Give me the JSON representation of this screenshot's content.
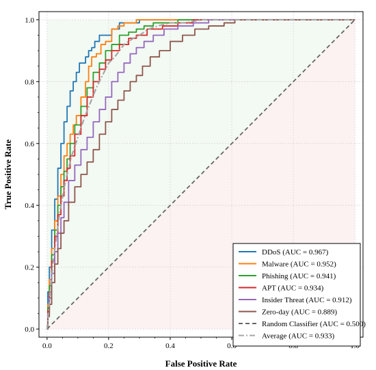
{
  "chart_data": {
    "type": "line",
    "title": "",
    "xlabel": "False Positive Rate",
    "ylabel": "True Positive Rate",
    "xlim": [
      0,
      1
    ],
    "ylim": [
      0,
      1
    ],
    "xticks": [
      "0.0",
      "0.2",
      "0.4",
      "0.6",
      "0.8",
      "1.0"
    ],
    "yticks": [
      "0.0",
      "0.2",
      "0.4",
      "0.6",
      "0.8",
      "1.0"
    ],
    "grid": true,
    "legend_position": "bottom-right",
    "shaded_regions": [
      {
        "region": "above-diagonal",
        "color": "#2ca02c"
      },
      {
        "region": "below-diagonal",
        "color": "#d62728"
      }
    ],
    "series": [
      {
        "name": "DDoS (AUC = 0.967)",
        "color": "#1f77b4",
        "style": "solid",
        "x": [
          0,
          0.005,
          0.01,
          0.02,
          0.03,
          0.04,
          0.05,
          0.06,
          0.07,
          0.08,
          0.09,
          0.1,
          0.11,
          0.12,
          0.13,
          0.14,
          0.15,
          0.16,
          0.18,
          0.2,
          0.22,
          0.25,
          0.28,
          0.32,
          0.4,
          0.5,
          1.0
        ],
        "y": [
          0,
          0.12,
          0.2,
          0.32,
          0.42,
          0.52,
          0.6,
          0.67,
          0.72,
          0.77,
          0.8,
          0.83,
          0.86,
          0.86,
          0.88,
          0.9,
          0.91,
          0.93,
          0.95,
          0.95,
          0.97,
          0.99,
          0.99,
          1.0,
          1.0,
          1.0,
          1.0
        ]
      },
      {
        "name": "Malware (AUC = 0.952)",
        "color": "#ff7f0e",
        "style": "solid",
        "x": [
          0,
          0.005,
          0.01,
          0.02,
          0.03,
          0.04,
          0.05,
          0.06,
          0.07,
          0.08,
          0.09,
          0.1,
          0.12,
          0.13,
          0.14,
          0.15,
          0.17,
          0.18,
          0.2,
          0.22,
          0.24,
          0.26,
          0.28,
          0.3,
          0.35,
          0.45,
          1.0
        ],
        "y": [
          0,
          0.08,
          0.16,
          0.26,
          0.35,
          0.43,
          0.5,
          0.56,
          0.6,
          0.63,
          0.66,
          0.69,
          0.75,
          0.8,
          0.85,
          0.88,
          0.89,
          0.92,
          0.93,
          0.97,
          0.98,
          0.99,
          0.99,
          1.0,
          1.0,
          1.0,
          1.0
        ]
      },
      {
        "name": "Phishing (AUC = 0.941)",
        "color": "#2ca02c",
        "style": "solid",
        "x": [
          0,
          0.005,
          0.01,
          0.02,
          0.03,
          0.04,
          0.05,
          0.06,
          0.07,
          0.08,
          0.1,
          0.12,
          0.14,
          0.16,
          0.18,
          0.2,
          0.22,
          0.25,
          0.28,
          0.3,
          0.33,
          0.36,
          0.4,
          0.45,
          0.5,
          1.0
        ],
        "y": [
          0,
          0.07,
          0.14,
          0.24,
          0.32,
          0.4,
          0.46,
          0.51,
          0.55,
          0.6,
          0.66,
          0.72,
          0.78,
          0.83,
          0.86,
          0.9,
          0.92,
          0.95,
          0.96,
          0.97,
          0.98,
          0.99,
          0.99,
          1.0,
          1.0,
          1.0
        ]
      },
      {
        "name": "APT (AUC = 0.934)",
        "color": "#d62728",
        "style": "solid",
        "x": [
          0,
          0.005,
          0.01,
          0.02,
          0.03,
          0.04,
          0.05,
          0.06,
          0.07,
          0.08,
          0.1,
          0.12,
          0.14,
          0.16,
          0.18,
          0.2,
          0.22,
          0.25,
          0.28,
          0.3,
          0.35,
          0.4,
          0.45,
          0.5,
          0.55,
          1.0
        ],
        "y": [
          0,
          0.06,
          0.12,
          0.22,
          0.3,
          0.37,
          0.43,
          0.48,
          0.52,
          0.56,
          0.63,
          0.69,
          0.75,
          0.8,
          0.84,
          0.87,
          0.9,
          0.92,
          0.94,
          0.95,
          0.97,
          0.98,
          0.99,
          1.0,
          1.0,
          1.0
        ]
      },
      {
        "name": "Insider Threat (AUC = 0.912)",
        "color": "#9467bd",
        "style": "solid",
        "x": [
          0,
          0.005,
          0.01,
          0.02,
          0.03,
          0.04,
          0.05,
          0.06,
          0.08,
          0.1,
          0.12,
          0.14,
          0.16,
          0.18,
          0.2,
          0.22,
          0.24,
          0.26,
          0.28,
          0.3,
          0.33,
          0.36,
          0.4,
          0.45,
          0.5,
          0.55,
          1.0
        ],
        "y": [
          0,
          0.05,
          0.1,
          0.18,
          0.25,
          0.31,
          0.36,
          0.41,
          0.48,
          0.53,
          0.58,
          0.62,
          0.67,
          0.71,
          0.75,
          0.8,
          0.83,
          0.86,
          0.89,
          0.91,
          0.93,
          0.95,
          0.97,
          0.98,
          0.99,
          1.0,
          1.0
        ]
      },
      {
        "name": "Zero-day (AUC = 0.889)",
        "color": "#8c564b",
        "style": "solid",
        "x": [
          0,
          0.005,
          0.01,
          0.02,
          0.03,
          0.04,
          0.05,
          0.06,
          0.08,
          0.1,
          0.12,
          0.14,
          0.16,
          0.18,
          0.2,
          0.22,
          0.24,
          0.26,
          0.28,
          0.3,
          0.32,
          0.35,
          0.38,
          0.42,
          0.46,
          0.5,
          0.55,
          0.6,
          0.62,
          1.0
        ],
        "y": [
          0,
          0.04,
          0.08,
          0.15,
          0.21,
          0.26,
          0.31,
          0.35,
          0.41,
          0.46,
          0.5,
          0.54,
          0.58,
          0.63,
          0.67,
          0.71,
          0.74,
          0.77,
          0.8,
          0.82,
          0.85,
          0.88,
          0.9,
          0.93,
          0.95,
          0.97,
          0.98,
          0.99,
          1.0,
          1.0
        ]
      },
      {
        "name": "Random Classifier (AUC = 0.500)",
        "color": "#666666",
        "style": "dashed",
        "x": [
          0,
          1
        ],
        "y": [
          0,
          1
        ]
      },
      {
        "name": "Average (AUC = 0.933)",
        "color": "#a6a6a6",
        "style": "dashdot",
        "x": [
          0,
          0.01,
          0.02,
          0.04,
          0.06,
          0.08,
          0.1,
          0.12,
          0.14,
          0.16,
          0.18,
          0.2,
          0.22,
          0.25,
          0.28,
          0.3,
          0.33,
          0.36,
          0.4,
          0.45,
          0.5,
          0.55,
          1.0
        ],
        "y": [
          0,
          0.12,
          0.22,
          0.37,
          0.48,
          0.56,
          0.62,
          0.68,
          0.73,
          0.78,
          0.82,
          0.86,
          0.88,
          0.92,
          0.94,
          0.95,
          0.97,
          0.98,
          0.99,
          0.99,
          1.0,
          1.0,
          1.0
        ]
      }
    ]
  }
}
